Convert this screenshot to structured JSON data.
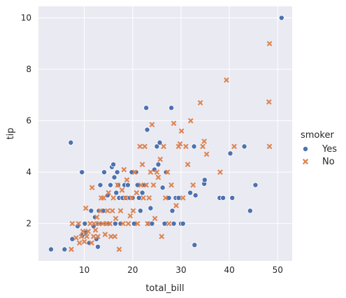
{
  "chart_data": {
    "type": "scatter",
    "title": "",
    "xlabel": "total_bill",
    "ylabel": "tip",
    "xlim": [
      0.5,
      53
    ],
    "ylim": [
      0.55,
      10.45
    ],
    "xticks": [
      10,
      20,
      30,
      40,
      50
    ],
    "yticks": [
      2,
      4,
      6,
      8,
      10
    ],
    "xtick_labels": [
      "10",
      "20",
      "30",
      "40",
      "50"
    ],
    "ytick_labels": [
      "2",
      "4",
      "6",
      "8",
      "10"
    ],
    "grid": true,
    "legend": {
      "title": "smoker",
      "placement": "right",
      "entries": [
        "Yes",
        "No"
      ]
    },
    "series": [
      {
        "name": "Yes",
        "marker": "circle",
        "color": "#4c72b0",
        "points": [
          [
            3.1,
            1.0
          ],
          [
            5.9,
            1.0
          ],
          [
            7.2,
            5.15
          ],
          [
            7.5,
            1.4
          ],
          [
            8.6,
            1.9
          ],
          [
            9.5,
            4.0
          ],
          [
            9.6,
            1.55
          ],
          [
            10.1,
            2.0
          ],
          [
            10.3,
            1.65
          ],
          [
            11.0,
            1.25
          ],
          [
            11.4,
            2.5
          ],
          [
            11.9,
            1.9
          ],
          [
            12.2,
            2.25
          ],
          [
            12.5,
            1.4
          ],
          [
            12.8,
            1.1
          ],
          [
            12.9,
            2.0
          ],
          [
            13.0,
            2.5
          ],
          [
            13.3,
            3.5
          ],
          [
            13.4,
            2.0
          ],
          [
            13.9,
            2.5
          ],
          [
            14.1,
            4.0
          ],
          [
            14.5,
            2.0
          ],
          [
            14.8,
            3.1
          ],
          [
            15.0,
            2.0
          ],
          [
            15.4,
            3.5
          ],
          [
            15.7,
            4.2
          ],
          [
            16.0,
            4.3
          ],
          [
            16.2,
            3.8
          ],
          [
            16.4,
            2.0
          ],
          [
            16.6,
            3.2
          ],
          [
            16.8,
            4.0
          ],
          [
            17.0,
            3.5
          ],
          [
            17.2,
            3.0
          ],
          [
            17.5,
            2.0
          ],
          [
            17.9,
            3.0
          ],
          [
            18.3,
            3.5
          ],
          [
            18.6,
            3.0
          ],
          [
            19.0,
            3.5
          ],
          [
            19.4,
            3.0
          ],
          [
            19.8,
            4.0
          ],
          [
            20.0,
            3.0
          ],
          [
            20.3,
            2.0
          ],
          [
            20.7,
            4.0
          ],
          [
            21.0,
            3.5
          ],
          [
            21.3,
            3.0
          ],
          [
            21.6,
            2.5
          ],
          [
            22.0,
            3.2
          ],
          [
            22.5,
            3.5
          ],
          [
            22.8,
            6.5
          ],
          [
            23.0,
            5.65
          ],
          [
            23.3,
            2.0
          ],
          [
            23.7,
            2.6
          ],
          [
            24.0,
            2.0
          ],
          [
            24.5,
            4.1
          ],
          [
            25.0,
            5.0
          ],
          [
            25.3,
            4.3
          ],
          [
            25.6,
            5.15
          ],
          [
            26.2,
            3.4
          ],
          [
            26.6,
            2.0
          ],
          [
            26.9,
            4.0
          ],
          [
            27.5,
            3.0
          ],
          [
            28.0,
            6.5
          ],
          [
            28.2,
            2.5
          ],
          [
            28.5,
            2.0
          ],
          [
            28.9,
            3.0
          ],
          [
            29.5,
            3.0
          ],
          [
            30.0,
            2.0
          ],
          [
            30.4,
            2.0
          ],
          [
            31.9,
            3.2
          ],
          [
            32.7,
            5.0
          ],
          [
            32.8,
            1.17
          ],
          [
            33.0,
            3.1
          ],
          [
            34.8,
            3.55
          ],
          [
            34.9,
            3.7
          ],
          [
            38.0,
            3.0
          ],
          [
            38.7,
            3.0
          ],
          [
            40.2,
            4.73
          ],
          [
            40.6,
            3.0
          ],
          [
            43.1,
            5.0
          ],
          [
            44.3,
            2.5
          ],
          [
            45.4,
            3.5
          ],
          [
            50.8,
            10.0
          ]
        ]
      },
      {
        "name": "No",
        "marker": "x",
        "color": "#dd8452",
        "points": [
          [
            7.3,
            1.0
          ],
          [
            7.5,
            2.0
          ],
          [
            8.3,
            1.45
          ],
          [
            8.8,
            2.0
          ],
          [
            9.0,
            1.25
          ],
          [
            9.4,
            1.5
          ],
          [
            9.7,
            1.7
          ],
          [
            10.0,
            1.3
          ],
          [
            10.3,
            2.6
          ],
          [
            10.5,
            1.5
          ],
          [
            10.8,
            1.7
          ],
          [
            11.2,
            2.0
          ],
          [
            11.5,
            1.25
          ],
          [
            11.6,
            3.4
          ],
          [
            11.9,
            1.5
          ],
          [
            12.0,
            2.0
          ],
          [
            12.3,
            1.75
          ],
          [
            12.6,
            2.25
          ],
          [
            12.8,
            1.5
          ],
          [
            13.0,
            2.0
          ],
          [
            13.3,
            2.5
          ],
          [
            13.5,
            3.0
          ],
          [
            13.8,
            2.0
          ],
          [
            14.0,
            3.0
          ],
          [
            14.3,
            1.58
          ],
          [
            14.5,
            2.0
          ],
          [
            14.8,
            2.5
          ],
          [
            15.0,
            3.2
          ],
          [
            15.3,
            2.0
          ],
          [
            15.5,
            1.5
          ],
          [
            15.8,
            2.5
          ],
          [
            16.0,
            3.0
          ],
          [
            16.3,
            1.5
          ],
          [
            16.5,
            2.2
          ],
          [
            16.9,
            3.5
          ],
          [
            17.2,
            1.0
          ],
          [
            17.5,
            2.5
          ],
          [
            17.8,
            3.3
          ],
          [
            18.0,
            2.0
          ],
          [
            18.2,
            4.1
          ],
          [
            18.5,
            3.0
          ],
          [
            18.8,
            3.7
          ],
          [
            19.1,
            2.0
          ],
          [
            19.5,
            2.3
          ],
          [
            19.8,
            3.0
          ],
          [
            20.1,
            2.5
          ],
          [
            20.4,
            4.0
          ],
          [
            20.8,
            3.2
          ],
          [
            21.0,
            2.0
          ],
          [
            21.5,
            5.0
          ],
          [
            21.7,
            3.5
          ],
          [
            22.0,
            4.3
          ],
          [
            22.2,
            3.0
          ],
          [
            22.5,
            5.0
          ],
          [
            22.8,
            3.5
          ],
          [
            23.1,
            2.0
          ],
          [
            23.4,
            3.0
          ],
          [
            23.7,
            4.0
          ],
          [
            24.0,
            5.85
          ],
          [
            24.3,
            3.5
          ],
          [
            24.6,
            2.2
          ],
          [
            25.0,
            4.0
          ],
          [
            25.3,
            3.8
          ],
          [
            25.7,
            4.5
          ],
          [
            26.0,
            1.5
          ],
          [
            26.4,
            5.0
          ],
          [
            26.8,
            3.0
          ],
          [
            27.2,
            4.0
          ],
          [
            27.5,
            2.0
          ],
          [
            28.0,
            3.5
          ],
          [
            28.5,
            5.9
          ],
          [
            29.0,
            2.7
          ],
          [
            29.5,
            5.0
          ],
          [
            29.8,
            5.1
          ],
          [
            30.1,
            5.6
          ],
          [
            30.4,
            3.0
          ],
          [
            31.0,
            5.0
          ],
          [
            31.4,
            4.3
          ],
          [
            32.0,
            6.0
          ],
          [
            32.5,
            3.5
          ],
          [
            34.0,
            6.7
          ],
          [
            34.5,
            5.0
          ],
          [
            34.8,
            5.2
          ],
          [
            35.3,
            4.7
          ],
          [
            38.1,
            4.0
          ],
          [
            39.4,
            7.58
          ],
          [
            41.0,
            5.0
          ],
          [
            48.2,
            6.73
          ],
          [
            48.3,
            5.0
          ],
          [
            48.3,
            9.0
          ]
        ]
      }
    ]
  }
}
